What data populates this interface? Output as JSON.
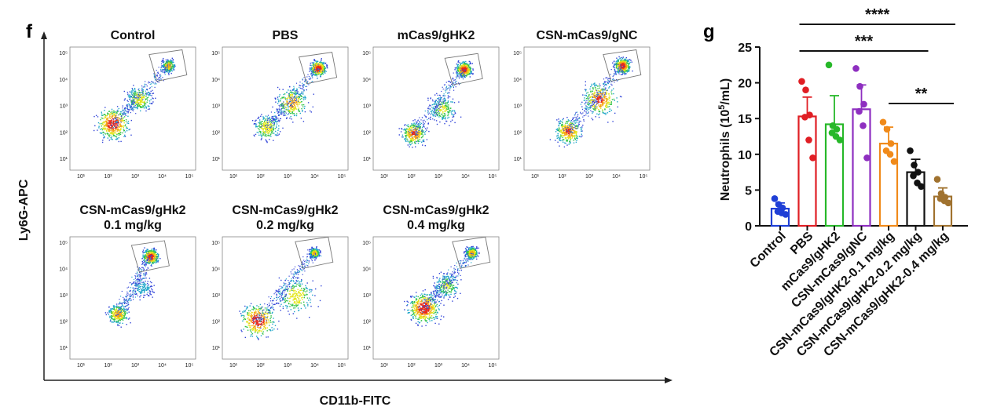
{
  "panel_f": {
    "label": "f",
    "x_axis_label": "CD11b-FITC",
    "y_axis_label": "Ly6G-APC",
    "tick_labels": [
      "10¹",
      "10²",
      "10³",
      "10⁴",
      "10⁵"
    ],
    "plots": [
      {
        "title_lines": [
          "Control"
        ]
      },
      {
        "title_lines": [
          "PBS"
        ]
      },
      {
        "title_lines": [
          "mCas9/gHK2"
        ]
      },
      {
        "title_lines": [
          "CSN-mCas9/gNC"
        ]
      },
      {
        "title_lines": [
          "CSN-mCas9/gHk2",
          "0.1 mg/kg"
        ]
      },
      {
        "title_lines": [
          "CSN-mCas9/gHk2",
          "0.2 mg/kg"
        ]
      },
      {
        "title_lines": [
          "CSN-mCas9/gHk2",
          "0.4 mg/kg"
        ]
      }
    ]
  },
  "chart_data": {
    "type": "bar",
    "label": "g",
    "ylabel_main": "Neutrophils (10",
    "ylabel_sup": "5",
    "ylabel_tail": "/mL)",
    "ylim": [
      0,
      25
    ],
    "yticks": [
      0,
      5,
      10,
      15,
      20,
      25
    ],
    "categories": [
      "Control",
      "PBS",
      "mCas9/gHK2",
      "CSN-mCas9/gNC",
      "CSN-mCas9/gHK2-0.1 mg/kg",
      "CSN-mCas9/gHK2-0.2 mg/kg",
      "CSN-mCas9/gHK2-0.4 mg/kg"
    ],
    "values": [
      2.4,
      15.3,
      14.2,
      16.3,
      11.5,
      7.5,
      4.1
    ],
    "errors": [
      0.8,
      2.7,
      4.0,
      3.4,
      2.3,
      1.8,
      1.2
    ],
    "colors": [
      "#1f3fd6",
      "#e01e24",
      "#27b829",
      "#8e2fc0",
      "#f08a1a",
      "#111111",
      "#a0722f"
    ],
    "points": [
      [
        3.8,
        3.0,
        2.5,
        2.0,
        1.8,
        1.6
      ],
      [
        20.2,
        19.0,
        15.5,
        15.2,
        12.0,
        9.5
      ],
      [
        22.5,
        14.0,
        13.5,
        13.0,
        12.5,
        12.0
      ],
      [
        22.0,
        19.5,
        17.0,
        16.0,
        14.0,
        9.5
      ],
      [
        14.5,
        13.5,
        11.5,
        10.5,
        10.0,
        9.0
      ],
      [
        10.5,
        8.5,
        7.5,
        7.0,
        6.0,
        5.5
      ],
      [
        6.5,
        4.5,
        4.0,
        3.8,
        3.5,
        3.2
      ]
    ],
    "significance": [
      {
        "from": 1,
        "to": 6,
        "text": "****"
      },
      {
        "from": 1,
        "to": 5,
        "text": "***"
      },
      {
        "from": 4,
        "to": 6,
        "text": "**"
      }
    ]
  }
}
